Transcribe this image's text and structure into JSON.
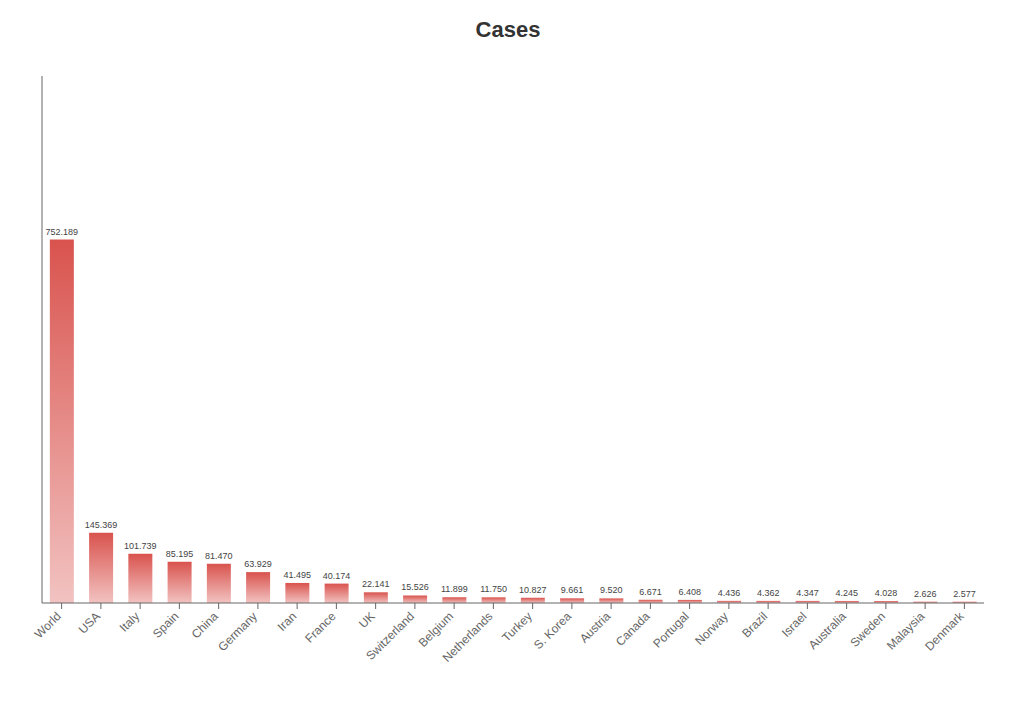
{
  "chart_data": {
    "type": "bar",
    "title": "Cases",
    "categories": [
      "World",
      "USA",
      "Italy",
      "Spain",
      "China",
      "Germany",
      "Iran",
      "France",
      "UK",
      "Switzerland",
      "Belgium",
      "Netherlands",
      "Turkey",
      "S. Korea",
      "Austria",
      "Canada",
      "Portugal",
      "Norway",
      "Brazil",
      "Israel",
      "Australia",
      "Sweden",
      "Malaysia",
      "Denmark"
    ],
    "values": [
      752189,
      145369,
      101739,
      85195,
      81470,
      63929,
      41495,
      40174,
      22141,
      15526,
      11899,
      11750,
      10827,
      9661,
      9520,
      6671,
      6408,
      4436,
      4362,
      4347,
      4245,
      4028,
      2626,
      2577
    ],
    "value_labels": [
      "752.189",
      "145.369",
      "101.739",
      "85.195",
      "81.470",
      "63.929",
      "41.495",
      "40.174",
      "22.141",
      "15.526",
      "11.899",
      "11.750",
      "10.827",
      "9.661",
      "9.520",
      "6.671",
      "6.408",
      "4.436",
      "4.362",
      "4.347",
      "4.245",
      "4.028",
      "2.626",
      "2.577"
    ],
    "data_labels": true,
    "color": "#d9534e",
    "ylim": [
      0,
      1090674.05
    ],
    "grid": false,
    "tick_labels": "x"
  }
}
